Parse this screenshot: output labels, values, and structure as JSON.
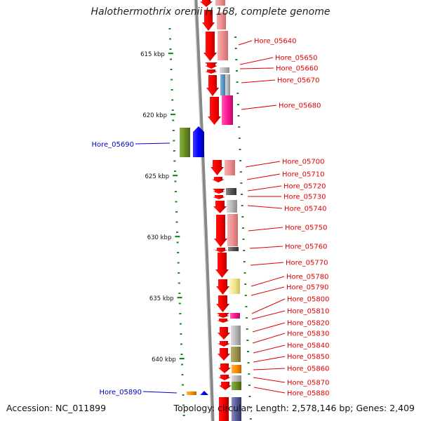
{
  "title": "Halothermothrix orenii H 168, complete genome",
  "footer": {
    "accession_label": "Accession:",
    "accession": "NC_011899",
    "topology_label": "Topology:",
    "topology": "circular",
    "length_label": "Length:",
    "length": "2,578,146 bp",
    "genes_label": "Genes:",
    "genes": "2,409"
  },
  "colors": {
    "strand_forward": "#ff0000",
    "label_red": "#e00000",
    "label_blue": "#0000cc",
    "tick_green": "#1a8a1a",
    "backbone": "#888888"
  },
  "map": {
    "scale_labels": [
      "615 kbp",
      "620 kbp",
      "625 kbp",
      "630 kbp",
      "635 kbp",
      "640 kbp"
    ],
    "genes_right": [
      "Hore_05640",
      "Hore_05650",
      "Hore_05660",
      "Hore_05670",
      "Hore_05680",
      "Hore_05700",
      "Hore_05710",
      "Hore_05720",
      "Hore_05730",
      "Hore_05740",
      "Hore_05750",
      "Hore_05760",
      "Hore_05770",
      "Hore_05780",
      "Hore_05790",
      "Hore_05800",
      "Hore_05810",
      "Hore_05820",
      "Hore_05830",
      "Hore_05840",
      "Hore_05850",
      "Hore_05860",
      "Hore_05870",
      "Hore_05880"
    ],
    "genes_left": [
      "Hore_05690",
      "Hore_05890"
    ]
  }
}
